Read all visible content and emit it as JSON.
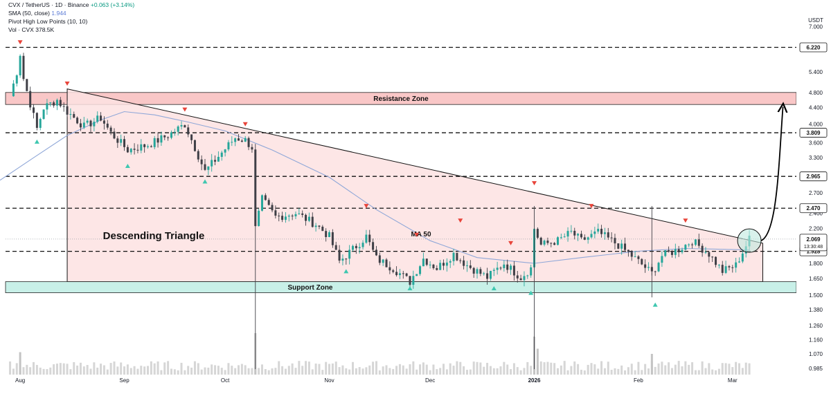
{
  "header": {
    "symbol": "CVX / TetherUS · 1D · Binance",
    "change": "+0.063 (+3.14%)",
    "sma_label": "SMA (50, close)",
    "sma_value": "1.944",
    "pivot_label": "Pivot High Low Points (10, 10)",
    "vol_label": "Vol · CVX",
    "vol_value": "378.5K"
  },
  "colors": {
    "up": "#26a69a",
    "down": "#3f3f46",
    "triangle_fill": "#fde2e2",
    "resistance_fill": "#f9c7c7",
    "support_fill": "#c8f0e8",
    "ma": "#8fa7d8",
    "pivot_high": "#e8443a",
    "pivot_low": "#3fc7b0",
    "volume": "#d6d6d6",
    "breakout_circle": "#bfe9df"
  },
  "chart_data": {
    "type": "candlestick",
    "title": "",
    "xlabel": "",
    "ylabel": "",
    "currency": "USDT",
    "y_scale": "log",
    "ylim": [
      0.95,
      7.6
    ],
    "x_range": [
      "2025-07-26",
      "2026-03-20"
    ],
    "y_ticks": [
      7.0,
      6.2,
      5.4,
      4.8,
      4.4,
      4.0,
      3.6,
      3.3,
      2.7,
      2.4,
      2.2,
      1.8,
      1.65,
      1.5,
      1.38,
      1.26,
      1.16,
      1.07,
      0.985
    ],
    "y_tick_labels": [
      "7.000",
      "6.200",
      "5.400",
      "4.800",
      "4.400",
      "4.000",
      "3.600",
      "3.300",
      "2.700",
      "2.400",
      "2.200",
      "1.800",
      "1.650",
      "1.500",
      "1.380",
      "1.260",
      "1.160",
      "1.070",
      "0.985"
    ],
    "x_ticks": [
      {
        "date": "2025-08-01",
        "label": "Aug"
      },
      {
        "date": "2025-09-01",
        "label": "Sep"
      },
      {
        "date": "2025-10-01",
        "label": "Oct"
      },
      {
        "date": "2025-11-01",
        "label": "Nov"
      },
      {
        "date": "2025-12-01",
        "label": "Dec"
      },
      {
        "date": "2026-01-01",
        "label": "2026"
      },
      {
        "date": "2026-02-01",
        "label": "Feb"
      },
      {
        "date": "2026-03-01",
        "label": "Mar"
      }
    ],
    "candles_start": "2025-07-29",
    "anchor_closes": [
      [
        "2025-07-29",
        4.7
      ],
      [
        "2025-07-31",
        5.4
      ],
      [
        "2025-08-01",
        6.0
      ],
      [
        "2025-08-02",
        5.2
      ],
      [
        "2025-08-04",
        4.5
      ],
      [
        "2025-08-06",
        3.9
      ],
      [
        "2025-08-08",
        4.4
      ],
      [
        "2025-08-12",
        4.6
      ],
      [
        "2025-08-15",
        4.3
      ],
      [
        "2025-08-20",
        3.95
      ],
      [
        "2025-08-25",
        4.15
      ],
      [
        "2025-08-28",
        3.8
      ],
      [
        "2025-09-02",
        3.45
      ],
      [
        "2025-09-08",
        3.55
      ],
      [
        "2025-09-14",
        3.75
      ],
      [
        "2025-09-19",
        4.0
      ],
      [
        "2025-09-22",
        3.5
      ],
      [
        "2025-09-25",
        3.05
      ],
      [
        "2025-09-30",
        3.4
      ],
      [
        "2025-10-04",
        3.7
      ],
      [
        "2025-10-07",
        3.65
      ],
      [
        "2025-10-09",
        3.5
      ],
      [
        "2025-10-10",
        2.2
      ],
      [
        "2025-10-12",
        2.6
      ],
      [
        "2025-10-16",
        2.35
      ],
      [
        "2025-10-22",
        2.4
      ],
      [
        "2025-10-28",
        2.25
      ],
      [
        "2025-11-01",
        2.1
      ],
      [
        "2025-11-04",
        1.82
      ],
      [
        "2025-11-08",
        1.95
      ],
      [
        "2025-11-12",
        2.1
      ],
      [
        "2025-11-15",
        1.85
      ],
      [
        "2025-11-20",
        1.75
      ],
      [
        "2025-11-25",
        1.62
      ],
      [
        "2025-11-29",
        1.85
      ],
      [
        "2025-12-03",
        1.75
      ],
      [
        "2025-12-08",
        1.9
      ],
      [
        "2025-12-12",
        1.78
      ],
      [
        "2025-12-18",
        1.66
      ],
      [
        "2025-12-23",
        1.8
      ],
      [
        "2025-12-28",
        1.66
      ],
      [
        "2025-12-31",
        1.75
      ],
      [
        "2026-01-01",
        2.2
      ],
      [
        "2026-01-03",
        2.0
      ],
      [
        "2026-01-08",
        2.05
      ],
      [
        "2026-01-12",
        2.15
      ],
      [
        "2026-01-15",
        2.05
      ],
      [
        "2026-01-20",
        2.15
      ],
      [
        "2026-01-26",
        2.0
      ],
      [
        "2026-01-31",
        1.85
      ],
      [
        "2026-02-05",
        1.7
      ],
      [
        "2026-02-08",
        1.88
      ],
      [
        "2026-02-13",
        1.95
      ],
      [
        "2026-02-17",
        2.05
      ],
      [
        "2026-02-22",
        1.9
      ],
      [
        "2026-02-26",
        1.72
      ],
      [
        "2026-03-02",
        1.78
      ],
      [
        "2026-03-06",
        2.069
      ]
    ],
    "sma_50": [
      [
        "2025-07-26",
        2.9
      ],
      [
        "2025-08-05",
        3.3
      ],
      [
        "2025-08-15",
        3.75
      ],
      [
        "2025-08-25",
        4.1
      ],
      [
        "2025-09-01",
        4.3
      ],
      [
        "2025-09-10",
        4.22
      ],
      [
        "2025-09-20",
        4.05
      ],
      [
        "2025-10-01",
        3.85
      ],
      [
        "2025-10-15",
        3.45
      ],
      [
        "2025-11-01",
        2.95
      ],
      [
        "2025-11-15",
        2.45
      ],
      [
        "2025-12-01",
        2.05
      ],
      [
        "2025-12-15",
        1.86
      ],
      [
        "2026-01-01",
        1.8
      ],
      [
        "2026-01-15",
        1.86
      ],
      [
        "2026-02-01",
        1.93
      ],
      [
        "2026-02-15",
        1.96
      ],
      [
        "2026-03-06",
        1.944
      ]
    ],
    "ma_label": "MA 50",
    "pivot_highs": [
      {
        "date": "2025-08-01",
        "value": 6.4
      },
      {
        "date": "2025-08-15",
        "value": 5.05
      },
      {
        "date": "2025-09-19",
        "value": 4.35
      },
      {
        "date": "2025-10-07",
        "value": 4.0
      },
      {
        "date": "2025-11-12",
        "value": 2.5
      },
      {
        "date": "2025-11-27",
        "value": 2.12
      },
      {
        "date": "2025-12-10",
        "value": 2.3
      },
      {
        "date": "2025-12-25",
        "value": 2.02
      },
      {
        "date": "2026-01-01",
        "value": 2.85
      },
      {
        "date": "2026-01-18",
        "value": 2.5
      },
      {
        "date": "2026-02-15",
        "value": 2.3
      }
    ],
    "pivot_lows": [
      {
        "date": "2025-08-06",
        "value": 3.62
      },
      {
        "date": "2025-09-02",
        "value": 3.15
      },
      {
        "date": "2025-09-25",
        "value": 2.88
      },
      {
        "date": "2025-11-06",
        "value": 1.72
      },
      {
        "date": "2025-11-25",
        "value": 1.56
      },
      {
        "date": "2025-12-20",
        "value": 1.56
      },
      {
        "date": "2025-12-31",
        "value": 1.52
      },
      {
        "date": "2026-02-06",
        "value": 1.42
      }
    ],
    "horizontal_levels": [
      {
        "value": 6.22,
        "label": "6.220"
      },
      {
        "value": 3.809,
        "label": "3.809"
      },
      {
        "value": 2.965,
        "label": "2.965"
      },
      {
        "value": 2.47,
        "label": "2.470"
      },
      {
        "value": 1.928,
        "label": "1.928"
      }
    ],
    "last_price": {
      "value": 2.069,
      "label": "2.069",
      "countdown": "13:30:48"
    },
    "resistance_zone": {
      "low": 4.48,
      "high": 4.8,
      "label": "Resistance Zone"
    },
    "support_zone": {
      "low": 1.52,
      "high": 1.62,
      "label": "Support Zone"
    },
    "triangle": {
      "label": "Descending Triangle",
      "apex_top": {
        "date": "2025-08-15",
        "value": 4.9
      },
      "upper_end": {
        "date": "2026-03-10",
        "value": 2.02
      },
      "base_value": 1.62,
      "right_date": "2026-03-10",
      "left_date": "2025-08-15"
    },
    "breakout": {
      "circle_center": {
        "date": "2026-03-06",
        "value": 2.05
      },
      "arrow_target": {
        "date": "2026-03-16",
        "value": 4.42
      }
    },
    "volume_note": "Vol CVX histogram",
    "volume_spikes": [
      {
        "date": "2025-10-10",
        "rel": 1.0
      },
      {
        "date": "2026-01-01",
        "rel": 0.9
      },
      {
        "date": "2026-01-02",
        "rel": 0.55
      },
      {
        "date": "2025-08-01",
        "rel": 0.45
      },
      {
        "date": "2026-02-05",
        "rel": 0.4
      }
    ]
  }
}
